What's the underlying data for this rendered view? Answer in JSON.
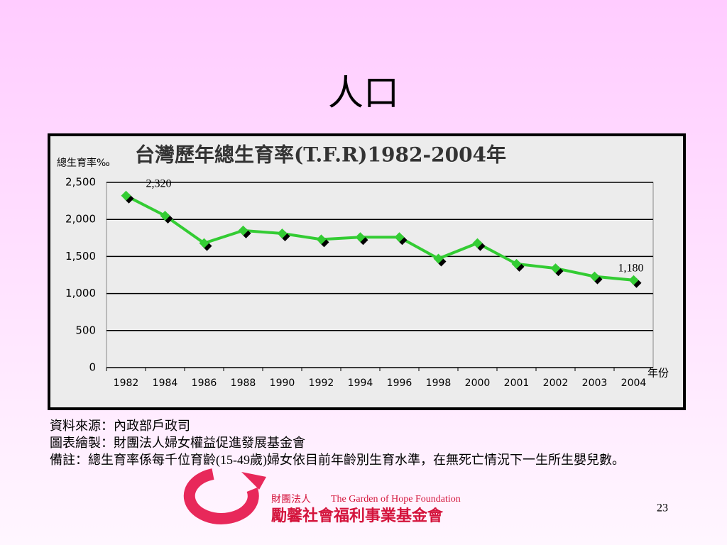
{
  "slide": {
    "title": "人口",
    "notes": [
      "資料來源：內政部戶政司",
      "圖表繪製：財團法人婦女權益促進發展基金會",
      "備註：總生育率係每千位育齡(15-49歲)婦女依目前年齡別生育水準，在無死亡情況下一生所生嬰兒數。"
    ],
    "logo": {
      "prefix": "財團法人",
      "english": "The Garden of Hope Foundation",
      "name": "勵馨社會福利事業基金會"
    },
    "page_number": "23"
  },
  "chart_data": {
    "type": "line",
    "title": "台灣歷年總生育率(T.F.R)1982-2004年",
    "y_label": "總生育率‰",
    "x_label": "年份",
    "categories": [
      "1982",
      "1984",
      "1986",
      "1988",
      "1990",
      "1992",
      "1994",
      "1996",
      "1998",
      "2000",
      "2001",
      "2002",
      "2003",
      "2004"
    ],
    "values": [
      2320,
      2050,
      1680,
      1850,
      1810,
      1730,
      1760,
      1760,
      1470,
      1680,
      1400,
      1340,
      1230,
      1180
    ],
    "value_labels": [
      "2,320",
      null,
      null,
      null,
      null,
      null,
      null,
      null,
      null,
      null,
      null,
      null,
      null,
      "1,180"
    ],
    "color": "#33cc33",
    "ylim": [
      0,
      2500
    ],
    "yticks": [
      0,
      500,
      {
        "value": 1000,
        "label": "1,000"
      },
      {
        "value": 1500,
        "label": "1,500"
      },
      {
        "value": 2000,
        "label": "2,000"
      },
      {
        "value": 2500,
        "label": "2,500"
      }
    ],
    "grid": true
  }
}
